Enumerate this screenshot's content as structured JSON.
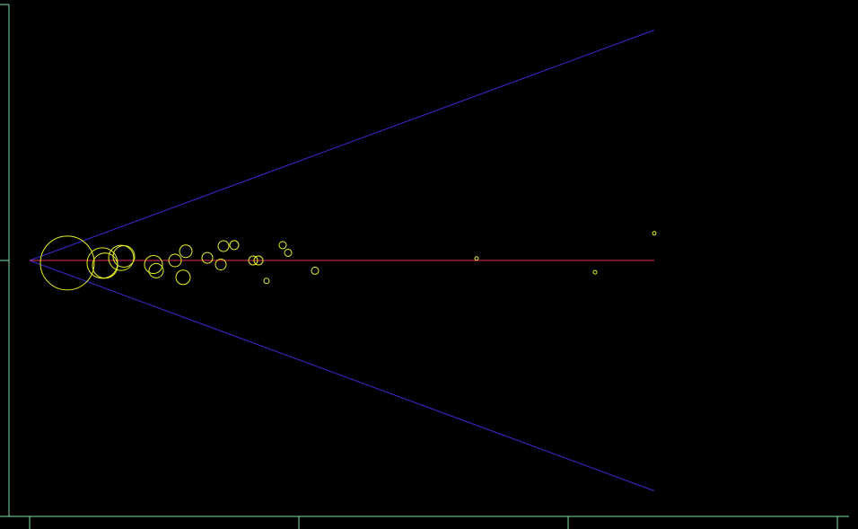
{
  "colors": {
    "background": "#000000",
    "axis": "#7fe0a8",
    "funnel": "#3b2bd6",
    "center_line": "#e0304a",
    "points": "#e6f02a"
  },
  "chart_data": {
    "type": "scatter",
    "title": "",
    "xlabel": "",
    "ylabel": "",
    "tick_labels_shown": false,
    "grid": false,
    "xlim": [
      -0.03,
      1.47
    ],
    "ylim": [
      -0.5,
      0.5
    ],
    "x_ticks": [
      0,
      0.5,
      1,
      1.5
    ],
    "y_ticks": [
      -0.5,
      0,
      0.5
    ],
    "center_value": 0,
    "funnel": {
      "apex_x": 0,
      "end_x": 1.16,
      "upper_end_y": 0.45,
      "lower_end_y": -0.45
    },
    "series": [
      {
        "points": [
          {
            "x": 0.07,
            "y": -0.005,
            "size": 30
          },
          {
            "x": 0.135,
            "y": -0.005,
            "size": 17
          },
          {
            "x": 0.14,
            "y": -0.01,
            "size": 14
          },
          {
            "x": 0.17,
            "y": 0.005,
            "size": 14
          },
          {
            "x": 0.175,
            "y": 0.008,
            "size": 12
          },
          {
            "x": 0.23,
            "y": -0.008,
            "size": 10
          },
          {
            "x": 0.235,
            "y": -0.02,
            "size": 8
          },
          {
            "x": 0.27,
            "y": 0.0,
            "size": 7
          },
          {
            "x": 0.29,
            "y": 0.018,
            "size": 7
          },
          {
            "x": 0.285,
            "y": -0.033,
            "size": 8
          },
          {
            "x": 0.33,
            "y": 0.005,
            "size": 6
          },
          {
            "x": 0.355,
            "y": -0.008,
            "size": 6
          },
          {
            "x": 0.36,
            "y": 0.028,
            "size": 6
          },
          {
            "x": 0.38,
            "y": 0.03,
            "size": 5
          },
          {
            "x": 0.415,
            "y": 0.0,
            "size": 5
          },
          {
            "x": 0.425,
            "y": 0.0,
            "size": 5
          },
          {
            "x": 0.44,
            "y": -0.04,
            "size": 3
          },
          {
            "x": 0.47,
            "y": 0.03,
            "size": 4
          },
          {
            "x": 0.48,
            "y": 0.015,
            "size": 4
          },
          {
            "x": 0.53,
            "y": -0.02,
            "size": 4
          },
          {
            "x": 0.83,
            "y": 0.004,
            "size": 2
          },
          {
            "x": 1.05,
            "y": -0.023,
            "size": 2
          },
          {
            "x": 1.16,
            "y": 0.053,
            "size": 2
          }
        ]
      }
    ]
  }
}
